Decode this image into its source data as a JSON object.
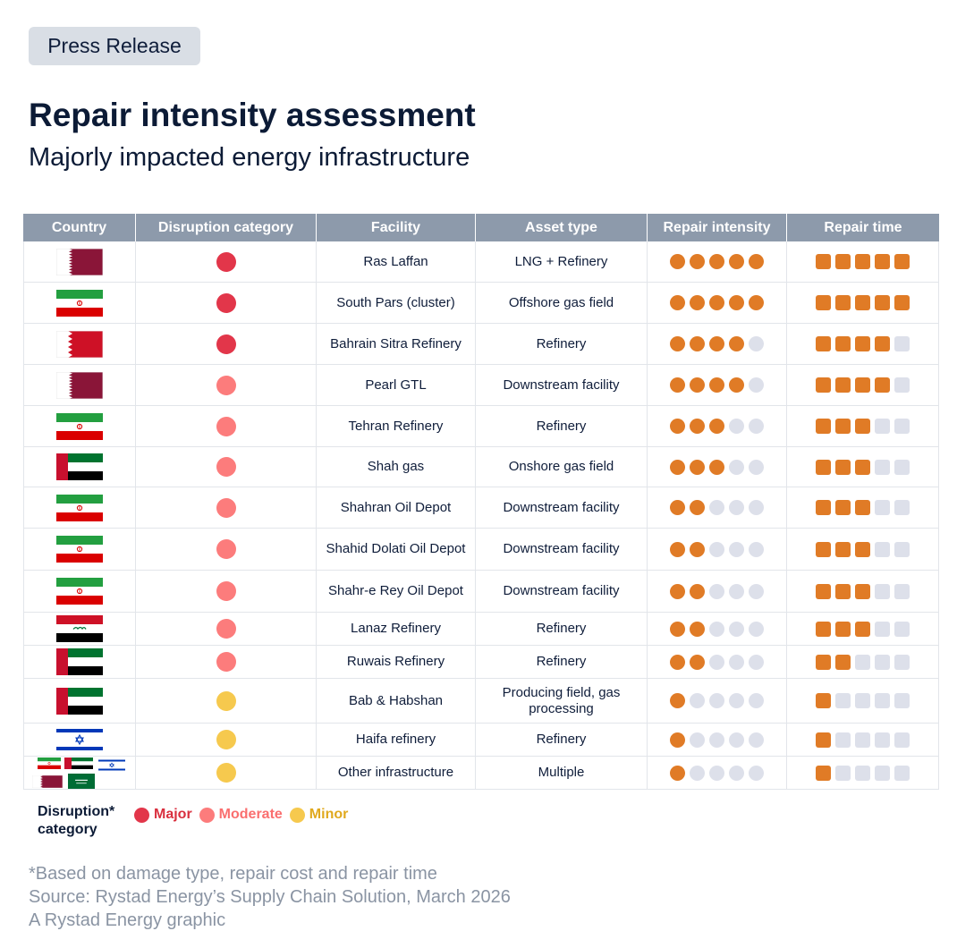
{
  "badge": "Press Release",
  "title": "Repair intensity assessment",
  "subtitle": "Majorly impacted energy infrastructure",
  "columns": [
    "Country",
    "Disruption category",
    "Facility",
    "Asset type",
    "Repair intensity",
    "Repair time"
  ],
  "colors": {
    "major": "#e2364a",
    "moderate": "#fc7c7c",
    "minor": "#f6c94e",
    "filled": "#e07b26",
    "empty": "#dde0ea",
    "header_bg": "#8d9aab"
  },
  "chart_data": {
    "type": "table",
    "max_score": 5,
    "rows": [
      {
        "country": "qatar-flag",
        "category": "major",
        "facility": "Ras Laffan",
        "asset_type": "LNG + Refinery",
        "repair_intensity": 5,
        "repair_time": 5
      },
      {
        "country": "iran-flag",
        "category": "major",
        "facility": "South Pars (cluster)",
        "asset_type": "Offshore gas field",
        "repair_intensity": 5,
        "repair_time": 5
      },
      {
        "country": "bahrain-flag",
        "category": "major",
        "facility": "Bahrain Sitra Refinery",
        "asset_type": "Refinery",
        "repair_intensity": 4,
        "repair_time": 4
      },
      {
        "country": "qatar-flag",
        "category": "moderate",
        "facility": "Pearl GTL",
        "asset_type": "Downstream facility",
        "repair_intensity": 4,
        "repair_time": 4
      },
      {
        "country": "iran-flag",
        "category": "moderate",
        "facility": "Tehran Refinery",
        "asset_type": "Refinery",
        "repair_intensity": 3,
        "repair_time": 3
      },
      {
        "country": "uae-flag",
        "category": "moderate",
        "facility": "Shah gas",
        "asset_type": "Onshore gas field",
        "repair_intensity": 3,
        "repair_time": 3
      },
      {
        "country": "iran-flag",
        "category": "moderate",
        "facility": "Shahran Oil Depot",
        "asset_type": "Downstream facility",
        "repair_intensity": 2,
        "repair_time": 3
      },
      {
        "country": "iran-flag",
        "category": "moderate",
        "facility": "Shahid Dolati Oil Depot",
        "asset_type": "Downstream facility",
        "repair_intensity": 2,
        "repair_time": 3
      },
      {
        "country": "iran-flag",
        "category": "moderate",
        "facility": "Shahr-e Rey Oil Depot",
        "asset_type": "Downstream facility",
        "repair_intensity": 2,
        "repair_time": 3
      },
      {
        "country": "iraq-flag",
        "category": "moderate",
        "facility": "Lanaz Refinery",
        "asset_type": "Refinery",
        "repair_intensity": 2,
        "repair_time": 3
      },
      {
        "country": "uae-flag",
        "category": "moderate",
        "facility": "Ruwais Refinery",
        "asset_type": "Refinery",
        "repair_intensity": 2,
        "repair_time": 2
      },
      {
        "country": "uae-flag",
        "category": "minor",
        "facility": "Bab & Habshan",
        "asset_type": "Producing field, gas processing",
        "repair_intensity": 1,
        "repair_time": 1
      },
      {
        "country": "israel-flag",
        "category": "minor",
        "facility": "Haifa refinery",
        "asset_type": "Refinery",
        "repair_intensity": 1,
        "repair_time": 1
      },
      {
        "country": "multiple-flags",
        "category": "minor",
        "facility": "Other infrastructure",
        "asset_type": "Multiple",
        "repair_intensity": 1,
        "repair_time": 1
      }
    ]
  },
  "legend": {
    "title": "Disruption* category",
    "items": [
      {
        "key": "major",
        "label": "Major"
      },
      {
        "key": "moderate",
        "label": "Moderate"
      },
      {
        "key": "minor",
        "label": "Minor"
      }
    ]
  },
  "footnotes": [
    "*Based on damage type, repair cost and repair time",
    "Source: Rystad Energy’s Supply Chain Solution, March 2026",
    "A Rystad Energy graphic"
  ]
}
